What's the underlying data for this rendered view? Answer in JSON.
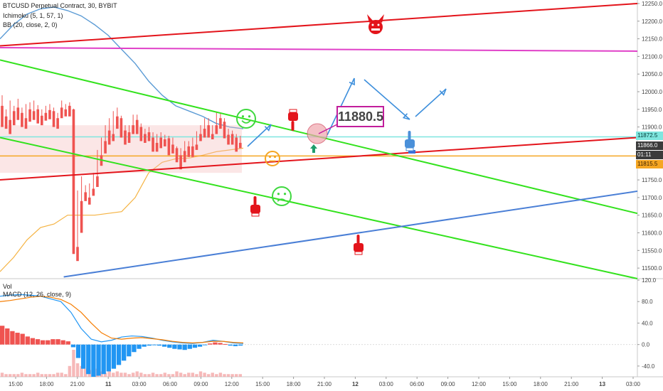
{
  "header": {
    "symbol_line": "BTCUSD Perpetual Contract, 30, BYBIT",
    "indicator_ichimoku": "Ichimoku (5, 1, 57, 1)",
    "indicator_bb": "BB (20, close, 2, 0)",
    "indicator_vol": "Vol",
    "indicator_macd": "MACD (12, 26, close, 9)"
  },
  "price_labels": {
    "tag_cyan": "11872.5",
    "tag_dark": "11866.0",
    "tag_timer": "01:11",
    "tag_orange": "11815.5",
    "callout": "11880.5"
  },
  "colors": {
    "up": "#26a69a",
    "down": "#ef5350",
    "red_line": "#e3141b",
    "green_line": "#33e21d",
    "blue_line": "#4a7fd6",
    "magenta_line": "#e040c8",
    "cyan_line": "#7fe6df",
    "orange_line": "#f5a623"
  },
  "chart_data": [
    {
      "type": "candlestick",
      "title": "BTCUSD Perpetual Contract, 30, BYBIT",
      "y_axis": {
        "ylim": [
          11470,
          12260
        ],
        "ticks": [
          12250,
          12200,
          12150,
          12100,
          12050,
          12000,
          11950,
          11900,
          11850,
          11800,
          11750,
          11700,
          11650,
          11600,
          11550,
          11500
        ]
      },
      "x_axis": {
        "ticks": [
          "15:00",
          "18:00",
          "21:00",
          "11",
          "03:00",
          "06:00",
          "09:00",
          "12:00",
          "15:00",
          "18:00",
          "21:00",
          "12",
          "03:00",
          "06:00",
          "09:00",
          "12:00",
          "15:00",
          "18:00",
          "21:00",
          "13",
          "03:00"
        ]
      },
      "candles": [
        [
          11960,
          11990,
          11930,
          11900
        ],
        [
          11930,
          11950,
          11900,
          11895
        ],
        [
          11920,
          11975,
          11915,
          11880
        ],
        [
          11945,
          11960,
          11930,
          11905
        ],
        [
          11955,
          11980,
          11935,
          11920
        ],
        [
          11940,
          11955,
          11925,
          11900
        ],
        [
          11925,
          11965,
          11920,
          11895
        ],
        [
          11950,
          11970,
          11935,
          11915
        ],
        [
          11945,
          11975,
          11940,
          11920
        ],
        [
          11950,
          11962,
          11930,
          11910
        ],
        [
          11932,
          11950,
          11925,
          11905
        ],
        [
          11940,
          11960,
          11935,
          11918
        ],
        [
          11948,
          11965,
          11940,
          11922
        ],
        [
          11945,
          11955,
          11925,
          11900
        ],
        [
          11925,
          11940,
          11920,
          11895
        ],
        [
          11955,
          11975,
          11940,
          11925
        ],
        [
          11950,
          11965,
          11945,
          11930
        ],
        [
          11960,
          11970,
          11945,
          11930
        ],
        [
          11950,
          11952,
          11560,
          11540
        ],
        [
          11560,
          11720,
          11540,
          11520
        ],
        [
          11690,
          11760,
          11620,
          11600
        ],
        [
          11715,
          11735,
          11700,
          11690
        ],
        [
          11700,
          11740,
          11690,
          11680
        ],
        [
          11725,
          11770,
          11715,
          11705
        ],
        [
          11760,
          11835,
          11745,
          11730
        ],
        [
          11820,
          11870,
          11810,
          11790
        ],
        [
          11860,
          11905,
          11840,
          11825
        ],
        [
          11890,
          11925,
          11870,
          11850
        ],
        [
          11880,
          11945,
          11870,
          11860
        ],
        [
          11930,
          11955,
          11915,
          11895
        ],
        [
          11925,
          11932,
          11880,
          11870
        ],
        [
          11890,
          11905,
          11860,
          11850
        ],
        [
          11885,
          11905,
          11870,
          11855
        ],
        [
          11905,
          11935,
          11895,
          11880
        ],
        [
          11920,
          11935,
          11890,
          11880
        ],
        [
          11900,
          11910,
          11870,
          11860
        ],
        [
          11880,
          11895,
          11870,
          11855
        ],
        [
          11885,
          11900,
          11870,
          11860
        ],
        [
          11870,
          11885,
          11840,
          11830
        ],
        [
          11855,
          11880,
          11835,
          11830
        ],
        [
          11870,
          11885,
          11855,
          11840
        ],
        [
          11865,
          11878,
          11860,
          11845
        ],
        [
          11868,
          11875,
          11840,
          11820
        ],
        [
          11850,
          11870,
          11835,
          11825
        ],
        [
          11840,
          11845,
          11810,
          11800
        ],
        [
          11820,
          11840,
          11790,
          11780
        ],
        [
          11832,
          11860,
          11810,
          11800
        ],
        [
          11845,
          11860,
          11830,
          11815
        ],
        [
          11845,
          11870,
          11825,
          11815
        ],
        [
          11850,
          11888,
          11845,
          11835
        ],
        [
          11880,
          11905,
          11870,
          11860
        ],
        [
          11895,
          11925,
          11885,
          11870
        ],
        [
          11905,
          11925,
          11880,
          11870
        ],
        [
          11880,
          11905,
          11875,
          11865
        ],
        [
          11905,
          11942,
          11895,
          11880
        ],
        [
          11925,
          11940,
          11910,
          11895
        ],
        [
          11915,
          11925,
          11878,
          11868
        ],
        [
          11878,
          11895,
          11860,
          11850
        ],
        [
          11880,
          11890,
          11858,
          11850
        ],
        [
          11870,
          11880,
          11840,
          11830
        ],
        [
          11855,
          11875,
          11848,
          11840
        ]
      ],
      "candle_order": "[open, high, low, close]",
      "lines": [
        {
          "name": "red_upper",
          "from": [
            0,
            12130
          ],
          "to": [
            1,
            12250
          ]
        },
        {
          "name": "red_lower",
          "from": [
            0,
            11750
          ],
          "to": [
            1,
            11870
          ]
        },
        {
          "name": "magenta",
          "from": [
            0,
            12125
          ],
          "to": [
            1,
            12115
          ]
        },
        {
          "name": "green_upper",
          "from": [
            0,
            12090
          ],
          "to": [
            1,
            11655
          ]
        },
        {
          "name": "green_lower",
          "from": [
            0,
            11870
          ],
          "to": [
            1,
            11470
          ]
        },
        {
          "name": "blue_support",
          "from": [
            0.1,
            11475
          ],
          "to": [
            1,
            11718
          ]
        },
        {
          "name": "cyan_hline",
          "value": 11872
        },
        {
          "name": "orange_hline",
          "value": 11818
        }
      ],
      "bollinger_upper_path": [
        12150,
        12190,
        12220,
        12235,
        12240,
        12230,
        12215,
        12190,
        12160,
        12120,
        12080,
        12030,
        11990,
        11960,
        11945,
        11930,
        11910,
        11900,
        11895
      ],
      "bollinger_lower_path": [
        11490,
        11530,
        11580,
        11615,
        11625,
        11650,
        11650,
        11650,
        11655,
        11660,
        11700,
        11770,
        11800,
        11810,
        11812,
        11820,
        11830,
        11835,
        11840
      ]
    },
    {
      "type": "bar",
      "title": "MACD (12, 26, close, 9)",
      "y_axis": {
        "ylim": [
          -60,
          120
        ],
        "ticks": [
          120,
          80,
          40,
          0,
          -40
        ]
      },
      "histogram": [
        35,
        30,
        25,
        22,
        20,
        15,
        12,
        10,
        8,
        8,
        10,
        10,
        8,
        6,
        -5,
        -25,
        -45,
        -55,
        -60,
        -58,
        -55,
        -50,
        -45,
        -38,
        -30,
        -22,
        -14,
        -8,
        -4,
        -2,
        -1,
        -2,
        -4,
        -6,
        -8,
        -9,
        -10,
        -8,
        -6,
        -4,
        -1,
        2,
        4,
        3,
        1,
        -2,
        -3,
        -2
      ],
      "macd_line": [
        90,
        92,
        93,
        92,
        90,
        85,
        80,
        60,
        30,
        10,
        5,
        8,
        14,
        16,
        15,
        12,
        8,
        5,
        3,
        2,
        4,
        8,
        6,
        3,
        2
      ],
      "signal_line": [
        80,
        82,
        85,
        88,
        90,
        88,
        84,
        75,
        60,
        40,
        22,
        12,
        10,
        12,
        13,
        11,
        9,
        6,
        4,
        3,
        4,
        6,
        6,
        4,
        3
      ]
    },
    {
      "type": "bar",
      "title": "Vol",
      "volume": [
        3,
        2,
        2,
        2,
        2,
        3,
        2,
        2,
        2,
        3,
        2,
        2,
        2,
        2,
        3,
        3,
        2,
        8,
        20,
        10,
        8,
        6,
        5,
        5,
        6,
        4,
        3,
        4,
        3,
        4,
        3,
        3,
        2,
        3,
        4,
        3,
        2,
        2,
        3,
        2,
        2,
        3,
        2,
        2,
        4,
        3,
        2,
        3,
        3,
        2,
        4,
        3,
        2,
        3,
        2,
        3,
        2,
        2,
        2,
        2,
        2
      ]
    }
  ]
}
